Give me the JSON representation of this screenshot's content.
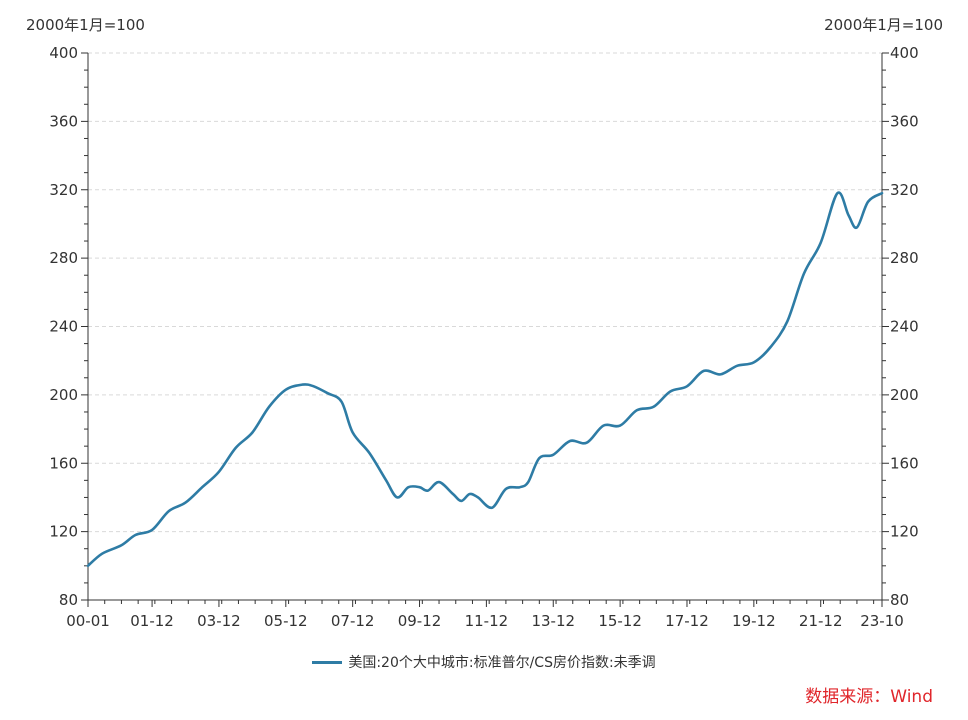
{
  "chart_data": {
    "type": "line",
    "unit_left": "2000年1月=100",
    "unit_right": "2000年1月=100",
    "ylim": [
      80,
      400
    ],
    "yticks": [
      80,
      120,
      160,
      200,
      240,
      280,
      320,
      360,
      400
    ],
    "xlim": [
      "2000-01",
      "2023-10"
    ],
    "xticks": [
      "00-01",
      "01-12",
      "03-12",
      "05-12",
      "07-12",
      "09-12",
      "11-12",
      "13-12",
      "15-12",
      "17-12",
      "19-12",
      "21-12",
      "23-10"
    ],
    "grid": true,
    "legend_position": "bottom",
    "series": [
      {
        "name": "美国:20个大中城市:标准普尔/CS房价指数:未季调",
        "color": "#2e7ca5",
        "points": [
          [
            "2000-01",
            100
          ],
          [
            "2000-06",
            107
          ],
          [
            "2001-01",
            112
          ],
          [
            "2001-06",
            118
          ],
          [
            "2001-12",
            121
          ],
          [
            "2002-06",
            132
          ],
          [
            "2002-12",
            137
          ],
          [
            "2003-06",
            146
          ],
          [
            "2003-12",
            155
          ],
          [
            "2004-06",
            169
          ],
          [
            "2004-12",
            178
          ],
          [
            "2005-06",
            193
          ],
          [
            "2005-12",
            203
          ],
          [
            "2006-06",
            206
          ],
          [
            "2006-10",
            205
          ],
          [
            "2007-03",
            201
          ],
          [
            "2007-08",
            196
          ],
          [
            "2007-12",
            178
          ],
          [
            "2008-06",
            166
          ],
          [
            "2008-12",
            150
          ],
          [
            "2009-04",
            140
          ],
          [
            "2009-08",
            146
          ],
          [
            "2009-12",
            146
          ],
          [
            "2010-03",
            144
          ],
          [
            "2010-07",
            149
          ],
          [
            "2010-12",
            142
          ],
          [
            "2011-03",
            138
          ],
          [
            "2011-06",
            142
          ],
          [
            "2011-09",
            140
          ],
          [
            "2012-02",
            134
          ],
          [
            "2012-07",
            145
          ],
          [
            "2012-12",
            146
          ],
          [
            "2013-03",
            149
          ],
          [
            "2013-07",
            163
          ],
          [
            "2013-12",
            165
          ],
          [
            "2014-06",
            173
          ],
          [
            "2014-12",
            172
          ],
          [
            "2015-06",
            182
          ],
          [
            "2015-12",
            182
          ],
          [
            "2016-06",
            191
          ],
          [
            "2016-12",
            193
          ],
          [
            "2017-06",
            202
          ],
          [
            "2017-12",
            205
          ],
          [
            "2018-06",
            214
          ],
          [
            "2018-12",
            212
          ],
          [
            "2019-06",
            217
          ],
          [
            "2019-12",
            219
          ],
          [
            "2020-06",
            228
          ],
          [
            "2020-12",
            243
          ],
          [
            "2021-06",
            271
          ],
          [
            "2021-12",
            289
          ],
          [
            "2022-06",
            318
          ],
          [
            "2022-10",
            305
          ],
          [
            "2023-01",
            298
          ],
          [
            "2023-05",
            313
          ],
          [
            "2023-10",
            318
          ]
        ]
      }
    ]
  },
  "source_label": "数据来源：Wind"
}
